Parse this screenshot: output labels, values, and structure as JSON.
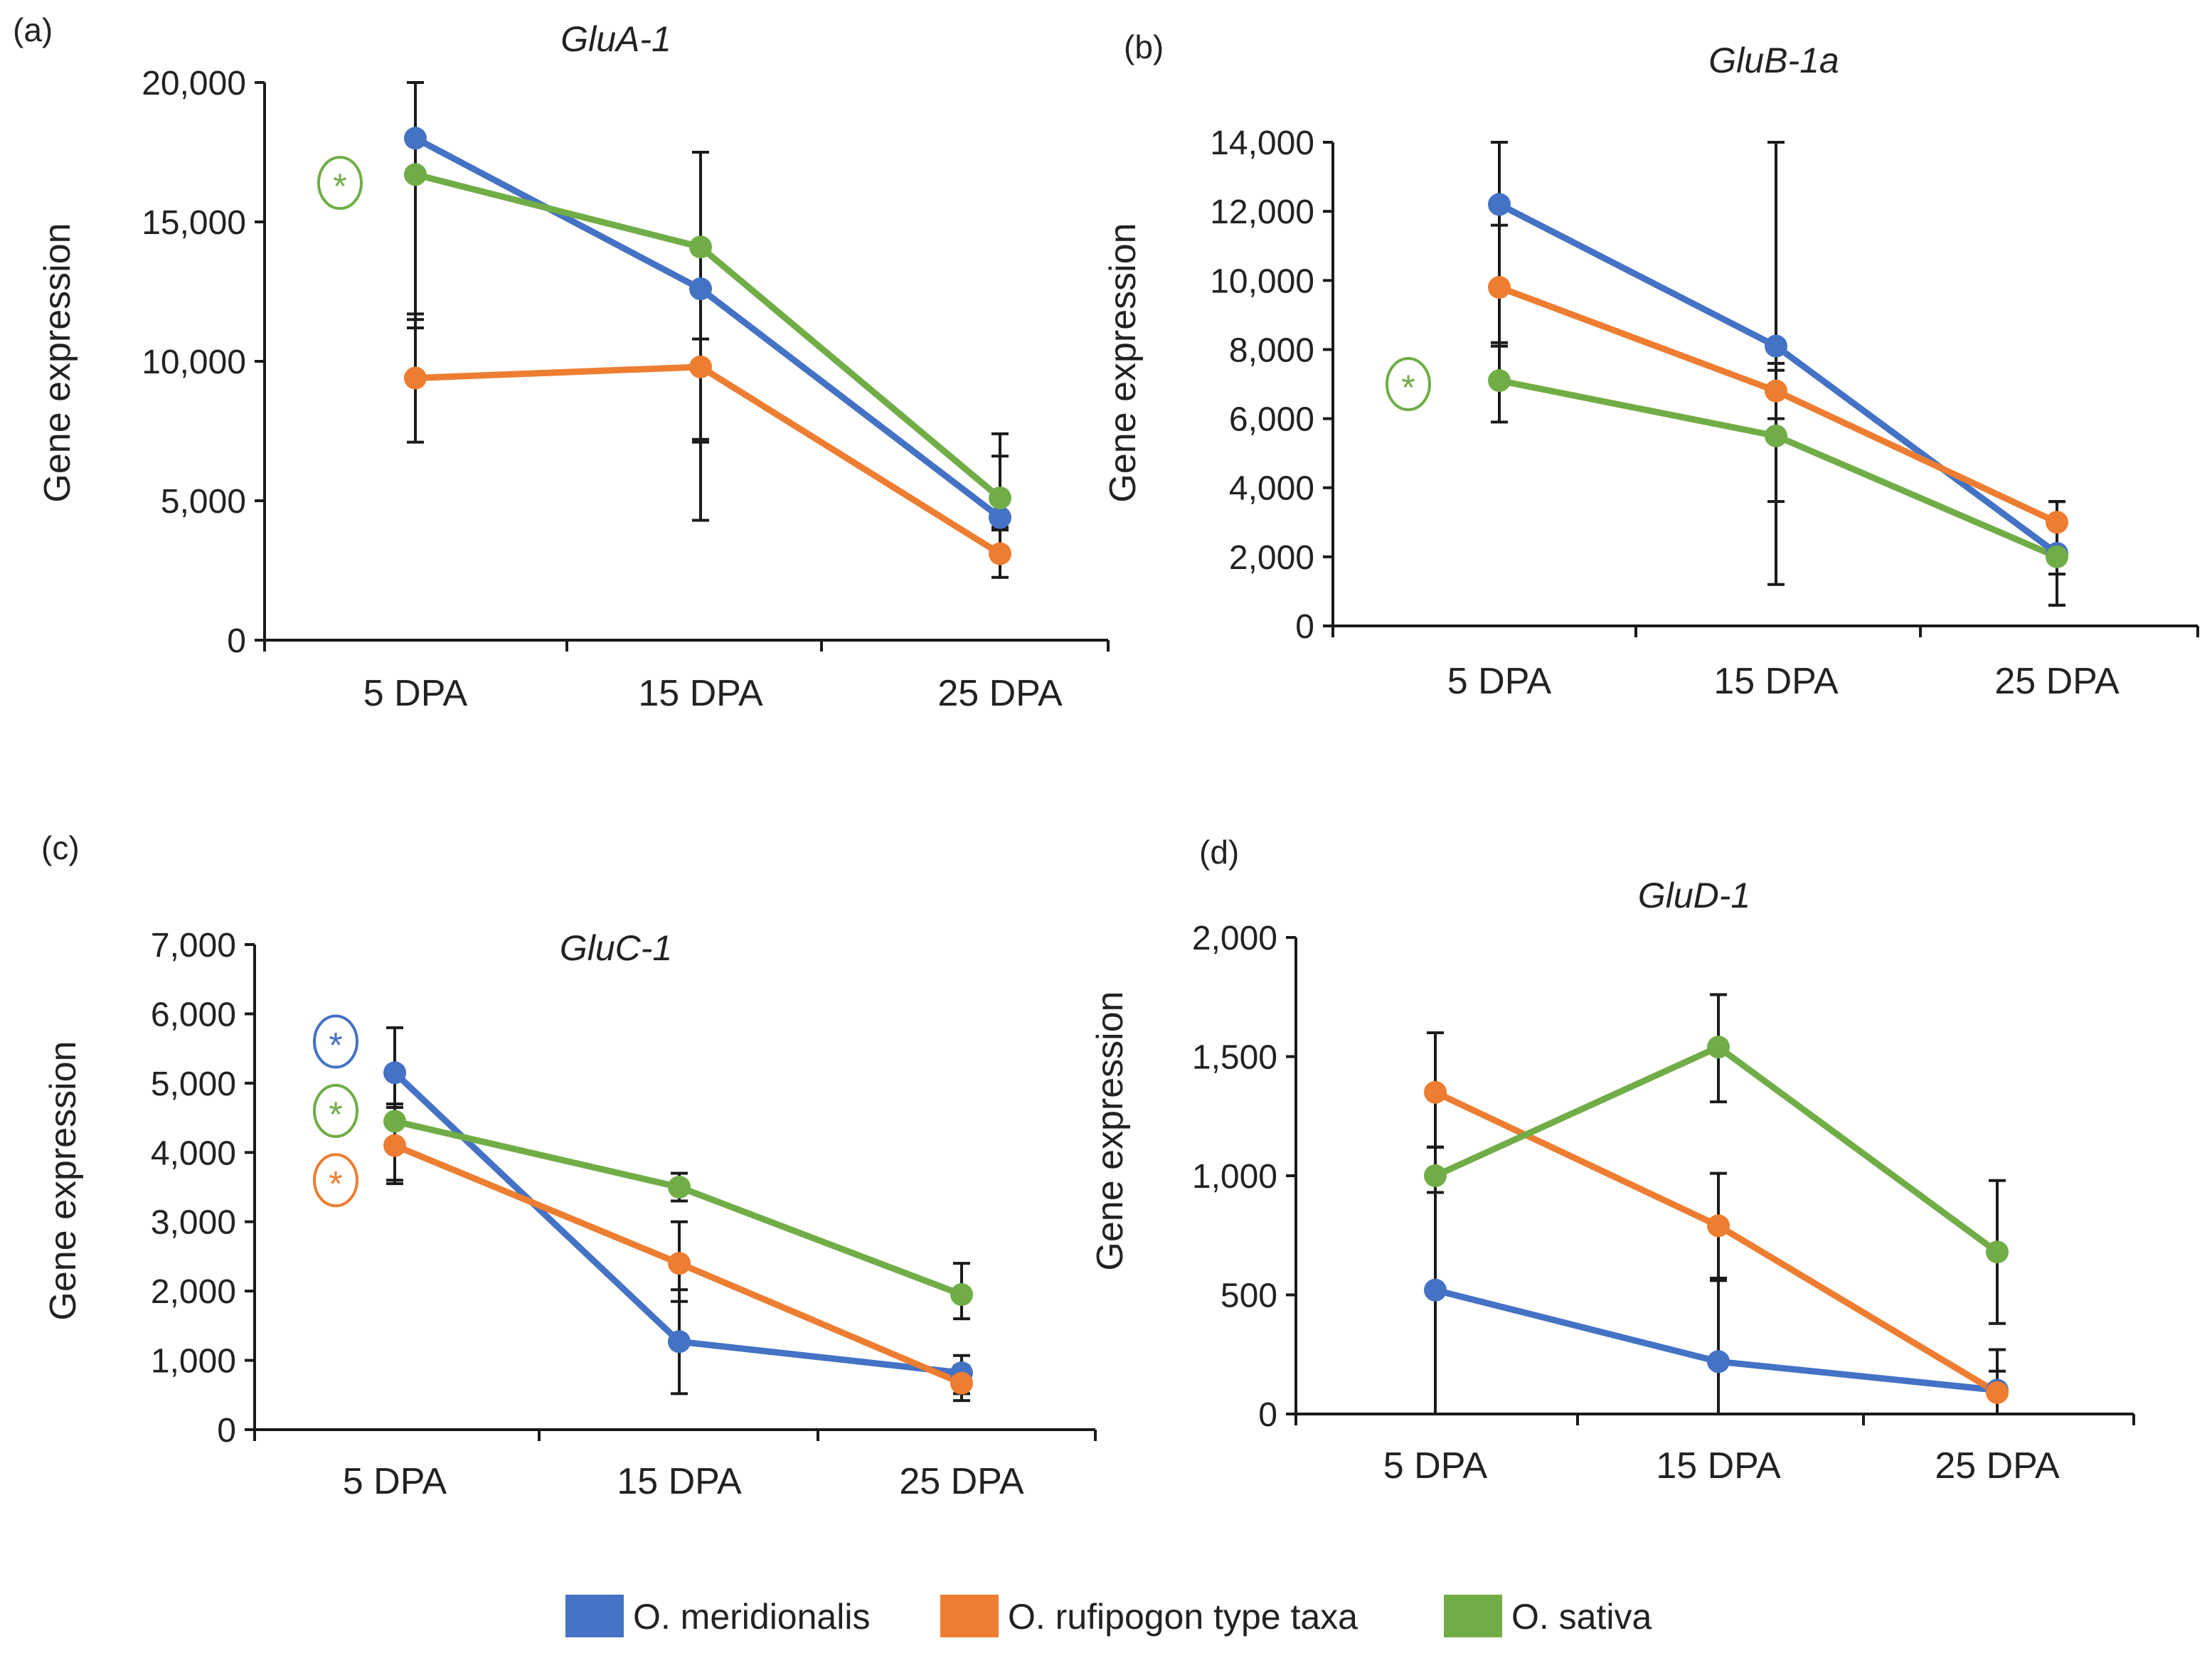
{
  "colors": {
    "O. meridionalis": "#4472C4",
    "O. rufipogon type taxa": "#ED7D31",
    "O. sativa": "#70AD47",
    "axis": "#1a1a1a"
  },
  "legend": [
    "O. meridionalis",
    "O. rufipogon type taxa",
    "O. sativa"
  ],
  "chart_data": [
    {
      "panel": "(a)",
      "type": "line",
      "title": "GluA-1",
      "xlabel": "",
      "ylabel": "Gene expression",
      "categories": [
        "5 DPA",
        "15 DPA",
        "25 DPA"
      ],
      "ylim": [
        0,
        20000
      ],
      "yticks": [
        0,
        5000,
        10000,
        15000,
        20000
      ],
      "ytick_labels": [
        "0",
        "5,000",
        "10,000",
        "15,000",
        "20,000"
      ],
      "series": [
        {
          "name": "O. meridionalis",
          "values": [
            18000,
            12600,
            4400
          ],
          "err_low": [
            6500,
            5500,
            450
          ],
          "err_high": [
            2500,
            4900,
            2200
          ]
        },
        {
          "name": "O. rufipogon type taxa",
          "values": [
            9400,
            9800,
            3100
          ],
          "err_low": [
            2300,
            5500,
            850
          ],
          "err_high": [
            2300,
            1000,
            950
          ]
        },
        {
          "name": "O. sativa",
          "values": [
            16700,
            14100,
            5100
          ],
          "err_low": [
            5500,
            6900,
            750
          ],
          "err_high": [
            3300,
            3400,
            2300
          ]
        }
      ],
      "annotations": [
        {
          "text": "*",
          "series": "O. sativa",
          "y": 16400
        }
      ]
    },
    {
      "panel": "(b)",
      "type": "line",
      "title": "GluB-1a",
      "xlabel": "",
      "ylabel": "Gene expression",
      "categories": [
        "5 DPA",
        "15 DPA",
        "25 DPA"
      ],
      "ylim": [
        0,
        14000
      ],
      "yticks": [
        0,
        2000,
        4000,
        6000,
        8000,
        10000,
        12000,
        14000
      ],
      "ytick_labels": [
        "0",
        "2,000",
        "4,000",
        "6,000",
        "8,000",
        "10,000",
        "12,000",
        "14,000"
      ],
      "series": [
        {
          "name": "O. meridionalis",
          "values": [
            12200,
            8100,
            2100
          ],
          "err_low": [
            4100,
            4500,
            1500
          ],
          "err_high": [
            1800,
            5900,
            1500
          ]
        },
        {
          "name": "O. rufipogon type taxa",
          "values": [
            9800,
            6800,
            3000
          ],
          "err_low": [
            1700,
            800,
            1500
          ],
          "err_high": [
            1800,
            800,
            600
          ]
        },
        {
          "name": "O. sativa",
          "values": [
            7100,
            5500,
            2000
          ],
          "err_low": [
            1200,
            4300,
            1400
          ],
          "err_high": [
            1100,
            1900,
            1600
          ]
        }
      ],
      "annotations": [
        {
          "text": "*",
          "series": "O. sativa",
          "y": 7000
        }
      ]
    },
    {
      "panel": "(c)",
      "type": "line",
      "title": "GluC-1",
      "xlabel": "",
      "ylabel": "Gene expression",
      "categories": [
        "5 DPA",
        "15 DPA",
        "25 DPA"
      ],
      "ylim": [
        0,
        7000
      ],
      "yticks": [
        0,
        1000,
        2000,
        3000,
        4000,
        5000,
        6000,
        7000
      ],
      "ytick_labels": [
        "0",
        "1,000",
        "2,000",
        "3,000",
        "4,000",
        "5,000",
        "6,000",
        "7,000"
      ],
      "series": [
        {
          "name": "O. meridionalis",
          "values": [
            5150,
            1270,
            820
          ],
          "err_low": [
            650,
            750,
            300
          ],
          "err_high": [
            650,
            750,
            250
          ]
        },
        {
          "name": "O. rufipogon type taxa",
          "values": [
            4100,
            2400,
            670
          ],
          "err_low": [
            550,
            550,
            250
          ],
          "err_high": [
            600,
            600,
            250
          ]
        },
        {
          "name": "O. sativa",
          "values": [
            4450,
            3500,
            1950
          ],
          "err_low": [
            850,
            200,
            350
          ],
          "err_high": [
            200,
            200,
            450
          ]
        }
      ],
      "annotations": [
        {
          "text": "*",
          "series": "O. meridionalis",
          "y": 5600
        },
        {
          "text": "*",
          "series": "O. sativa",
          "y": 4600
        },
        {
          "text": "*",
          "series": "O. rufipogon type taxa",
          "y": 3600
        }
      ]
    },
    {
      "panel": "(d)",
      "type": "line",
      "title": "GluD-1",
      "xlabel": "",
      "ylabel": "Gene expression",
      "categories": [
        "5 DPA",
        "15 DPA",
        "25 DPA"
      ],
      "ylim": [
        0,
        2000
      ],
      "yticks": [
        0,
        500,
        1000,
        1500,
        2000
      ],
      "ytick_labels": [
        "0",
        "500",
        "1,000",
        "1,500",
        "2,000"
      ],
      "series": [
        {
          "name": "O. meridionalis",
          "values": [
            520,
            220,
            100
          ],
          "err_low": [
            520,
            220,
            100
          ],
          "err_high": [
            600,
            350,
            170
          ]
        },
        {
          "name": "O. rufipogon type taxa",
          "values": [
            1350,
            790,
            90
          ],
          "err_low": [
            230,
            230,
            90
          ],
          "err_high": [
            250,
            220,
            90
          ]
        },
        {
          "name": "O. sativa",
          "values": [
            1000,
            1540,
            680
          ],
          "err_low": [
            70,
            230,
            300
          ],
          "err_high": [
            120,
            220,
            300
          ]
        }
      ],
      "annotations": []
    }
  ]
}
